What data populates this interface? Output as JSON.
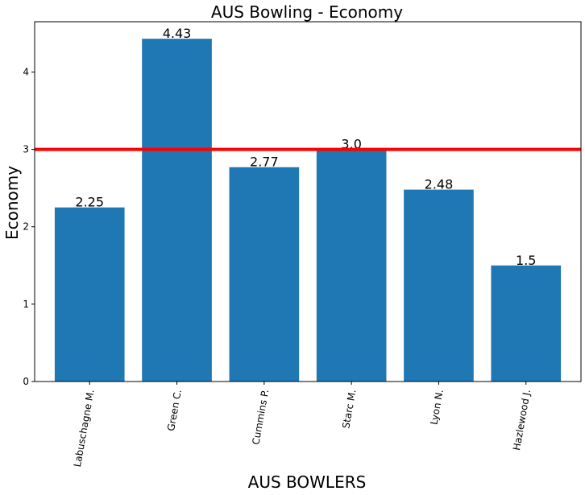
{
  "chart_data": {
    "type": "bar",
    "title": "AUS Bowling - Economy",
    "xlabel": "AUS BOWLERS",
    "ylabel": "Economy",
    "categories": [
      "Labuschagne M.",
      "Green C.",
      "Cummins P.",
      "Starc M.",
      "Lyon N.",
      "Hazlewood J."
    ],
    "values": [
      2.25,
      4.43,
      2.77,
      3.0,
      2.48,
      1.5
    ],
    "value_labels": [
      "2.25",
      "4.43",
      "2.77",
      "3.0",
      "2.48",
      "1.5"
    ],
    "yticks": [
      0,
      1,
      2,
      3,
      4
    ],
    "ylim": [
      0,
      4.65
    ],
    "reference_line": {
      "y": 3.0
    },
    "grid": false,
    "colors": {
      "bar": "#1f77b4",
      "reference_line": "#ff0000"
    }
  }
}
